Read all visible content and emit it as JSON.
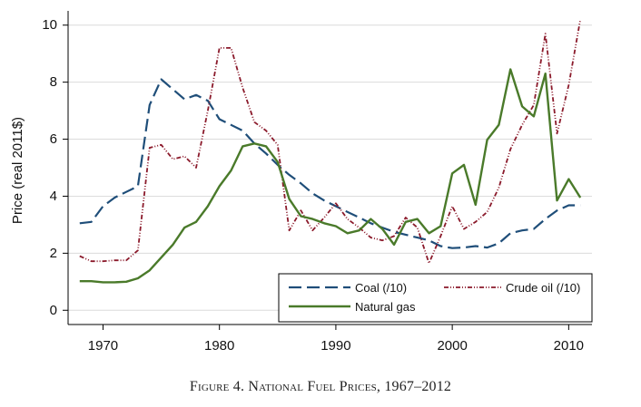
{
  "caption": "Figure 4. National Fuel Prices, 1967–2012",
  "chart_data": {
    "type": "line",
    "title": "",
    "xlabel": "",
    "ylabel": "Price (real 2011$)",
    "xlim": [
      1967,
      2012
    ],
    "ylim": [
      -0.5,
      10.5
    ],
    "x_ticks": [
      1970,
      1980,
      1990,
      2000,
      2010
    ],
    "y_ticks": [
      0,
      2,
      4,
      6,
      8,
      10
    ],
    "grid": "horizontal",
    "legend_position": "bottom-right",
    "colors": {
      "coal": "#1f4e79",
      "crude": "#8b1a2b",
      "gas": "#4a7a2a",
      "grid": "#dcdcdc",
      "axis": "#000000"
    },
    "series": [
      {
        "name": "Coal (/10)",
        "style": "long-dash",
        "color": "#1f4e79",
        "x": [
          1968,
          1969,
          1970,
          1971,
          1972,
          1973,
          1974,
          1975,
          1976,
          1977,
          1978,
          1979,
          1980,
          1981,
          1982,
          1983,
          1984,
          1985,
          1986,
          1987,
          1988,
          1989,
          1990,
          1991,
          1992,
          1993,
          1994,
          1995,
          1996,
          1997,
          1998,
          1999,
          2000,
          2001,
          2002,
          2003,
          2004,
          2005,
          2006,
          2007,
          2008,
          2009,
          2010,
          2011
        ],
        "values": [
          3.05,
          3.1,
          3.65,
          3.95,
          4.15,
          4.35,
          7.2,
          8.1,
          7.75,
          7.4,
          7.55,
          7.35,
          6.7,
          6.5,
          6.3,
          5.85,
          5.5,
          5.1,
          4.75,
          4.45,
          4.1,
          3.85,
          3.65,
          3.45,
          3.25,
          3.05,
          2.9,
          2.75,
          2.65,
          2.55,
          2.45,
          2.25,
          2.18,
          2.2,
          2.25,
          2.2,
          2.35,
          2.7,
          2.8,
          2.85,
          3.2,
          3.5,
          3.68,
          3.68
        ]
      },
      {
        "name": "Crude oil (/10)",
        "style": "dash-dot",
        "color": "#8b1a2b",
        "x": [
          1968,
          1969,
          1970,
          1971,
          1972,
          1973,
          1974,
          1975,
          1976,
          1977,
          1978,
          1979,
          1980,
          1981,
          1982,
          1983,
          1984,
          1985,
          1986,
          1987,
          1988,
          1989,
          1990,
          1991,
          1992,
          1993,
          1994,
          1995,
          1996,
          1997,
          1998,
          1999,
          2000,
          2001,
          2002,
          2003,
          2004,
          2005,
          2006,
          2007,
          2008,
          2009,
          2010,
          2011
        ],
        "values": [
          1.9,
          1.72,
          1.72,
          1.75,
          1.75,
          2.1,
          5.7,
          5.8,
          5.3,
          5.4,
          5.0,
          7.0,
          9.2,
          9.2,
          7.8,
          6.6,
          6.3,
          5.8,
          2.8,
          3.5,
          2.8,
          3.25,
          3.75,
          3.2,
          2.9,
          2.55,
          2.45,
          2.6,
          3.25,
          2.9,
          1.65,
          2.6,
          3.65,
          2.85,
          3.1,
          3.45,
          4.3,
          5.65,
          6.5,
          7.2,
          9.7,
          6.2,
          7.9,
          10.2
        ]
      },
      {
        "name": "Natural gas",
        "style": "solid",
        "color": "#4a7a2a",
        "x": [
          1968,
          1969,
          1970,
          1971,
          1972,
          1973,
          1974,
          1975,
          1976,
          1977,
          1978,
          1979,
          1980,
          1981,
          1982,
          1983,
          1984,
          1985,
          1986,
          1987,
          1988,
          1989,
          1990,
          1991,
          1992,
          1993,
          1994,
          1995,
          1996,
          1997,
          1998,
          1999,
          2000,
          2001,
          2002,
          2003,
          2004,
          2005,
          2006,
          2007,
          2008,
          2009,
          2010,
          2011
        ],
        "values": [
          1.02,
          1.02,
          0.98,
          0.98,
          1.0,
          1.12,
          1.4,
          1.85,
          2.3,
          2.9,
          3.1,
          3.65,
          4.35,
          4.9,
          5.75,
          5.85,
          5.75,
          5.2,
          3.9,
          3.3,
          3.2,
          3.05,
          2.95,
          2.7,
          2.8,
          3.2,
          2.85,
          2.3,
          3.1,
          3.2,
          2.7,
          2.95,
          4.8,
          5.1,
          3.7,
          5.98,
          6.5,
          8.45,
          7.15,
          6.8,
          8.3,
          3.85,
          4.6,
          3.95
        ]
      }
    ]
  }
}
